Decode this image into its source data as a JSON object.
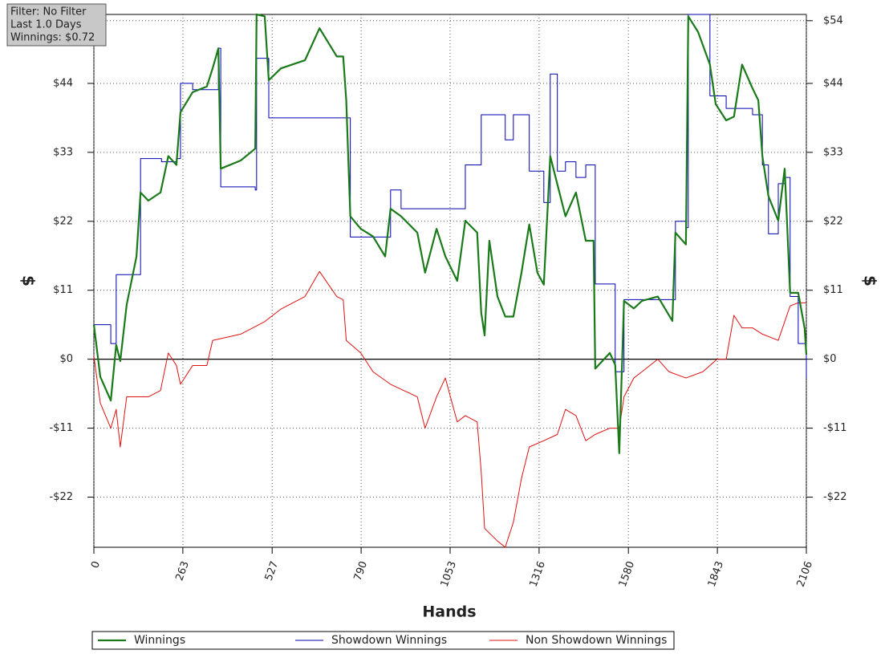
{
  "chart_data": {
    "type": "line",
    "annotations": [
      "Filter: No Filter",
      "Last 1.0 Days",
      "Winnings: $0.72"
    ],
    "x_label": "Hands",
    "y_label": "$",
    "y2_label": "$",
    "xlim": [
      0,
      2106
    ],
    "ylim": [
      -30,
      55
    ],
    "xticks": [
      0,
      263,
      527,
      790,
      1053,
      1316,
      1580,
      1843,
      2106
    ],
    "yticks": [
      {
        "value": -22,
        "label": "-$22"
      },
      {
        "value": -11,
        "label": "-$11"
      },
      {
        "value": 0,
        "label": "$0"
      },
      {
        "value": 11,
        "label": "$11"
      },
      {
        "value": 22,
        "label": "$22"
      },
      {
        "value": 33,
        "label": "$33"
      },
      {
        "value": 44,
        "label": "$44"
      },
      {
        "value": 54,
        "label": "$54"
      }
    ],
    "grid": true,
    "series": [
      {
        "name": "Winnings",
        "color": "#1a7a1a",
        "width": 2.2,
        "x": [
          0,
          19,
          50,
          66,
          78,
          97,
          126,
          138,
          161,
          197,
          220,
          244,
          256,
          292,
          334,
          351,
          368,
          375,
          434,
          477,
          481,
          505,
          517,
          553,
          624,
          667,
          718,
          737,
          746,
          758,
          789,
          825,
          861,
          877,
          908,
          956,
          979,
          1013,
          1039,
          1074,
          1098,
          1133,
          1145,
          1155,
          1169,
          1193,
          1216,
          1240,
          1264,
          1287,
          1311,
          1330,
          1349,
          1370,
          1394,
          1425,
          1454,
          1477,
          1482,
          1525,
          1541,
          1553,
          1567,
          1596,
          1620,
          1667,
          1710,
          1719,
          1750,
          1757,
          1786,
          1821,
          1838,
          1869,
          1892,
          1916,
          1947,
          1964,
          1976,
          1994,
          2023,
          2042,
          2058,
          2082,
          2101,
          2106
        ],
        "values": [
          5.5,
          -2.8,
          -6.6,
          2.3,
          -0.3,
          8.7,
          16.4,
          26.6,
          25.3,
          26.6,
          32.4,
          31,
          39.4,
          42.6,
          43.5,
          46.4,
          49.6,
          30.4,
          31.7,
          33.6,
          55,
          54.7,
          44.5,
          46.4,
          47.7,
          52.8,
          48.3,
          48.3,
          41.3,
          22.8,
          20.8,
          19.6,
          16.4,
          24,
          22.8,
          20.2,
          13.8,
          20.8,
          16.4,
          12.5,
          22.1,
          20.2,
          7.4,
          3.8,
          18.9,
          10,
          6.8,
          6.8,
          13.8,
          21.5,
          13.8,
          11.9,
          32.4,
          27.9,
          22.8,
          26.6,
          18.9,
          18.9,
          -1.5,
          1,
          -0.9,
          -15,
          9.3,
          8.1,
          9.3,
          10,
          6.1,
          20.2,
          18.3,
          54.7,
          52.2,
          47,
          40.7,
          38.1,
          38.7,
          47,
          43.2,
          41.3,
          32.4,
          26,
          22.1,
          30.4,
          10.6,
          10.6,
          4.9,
          0.72
        ]
      },
      {
        "name": "Showdown Winnings",
        "color": "#0000b0",
        "width": 1,
        "step": true,
        "x": [
          0,
          19,
          50,
          66,
          126,
          138,
          200,
          244,
          256,
          292,
          351,
          368,
          375,
          477,
          481,
          517,
          624,
          746,
          758,
          861,
          877,
          908,
          1074,
          1098,
          1133,
          1145,
          1193,
          1216,
          1240,
          1287,
          1311,
          1330,
          1349,
          1370,
          1394,
          1425,
          1454,
          1477,
          1482,
          1525,
          1541,
          1567,
          1710,
          1719,
          1750,
          1757,
          1786,
          1821,
          1869,
          1916,
          1947,
          1976,
          1994,
          2023,
          2042,
          2058,
          2082,
          2106
        ],
        "values": [
          5.5,
          5.5,
          2.5,
          13.5,
          13.5,
          32,
          31.5,
          32,
          44,
          43,
          43,
          49.6,
          27.5,
          27,
          48,
          38.5,
          38.5,
          38.5,
          19.5,
          19.5,
          27,
          24,
          24,
          31,
          31,
          39,
          39,
          35,
          39,
          30,
          30,
          25,
          45.5,
          30,
          31.5,
          29,
          31,
          31,
          12,
          12,
          -2,
          9.5,
          9.5,
          22,
          21,
          55,
          55,
          42,
          40,
          40,
          39,
          31,
          20,
          28,
          29,
          10,
          2.5,
          -3
        ]
      },
      {
        "name": "Non Showdown Winnings",
        "color": "#e01010",
        "width": 1,
        "x": [
          0,
          19,
          50,
          66,
          78,
          97,
          161,
          197,
          220,
          244,
          256,
          292,
          334,
          351,
          434,
          505,
          553,
          624,
          667,
          718,
          737,
          746,
          789,
          825,
          877,
          956,
          979,
          1013,
          1039,
          1074,
          1098,
          1133,
          1145,
          1155,
          1193,
          1216,
          1240,
          1264,
          1287,
          1330,
          1370,
          1394,
          1425,
          1454,
          1482,
          1525,
          1553,
          1567,
          1596,
          1620,
          1667,
          1700,
          1750,
          1800,
          1842,
          1869,
          1892,
          1916,
          1947,
          1976,
          2023,
          2042,
          2058,
          2082,
          2106
        ],
        "values": [
          0.5,
          -7,
          -11,
          -8,
          -14,
          -6,
          -6,
          -5,
          1,
          -1,
          -4,
          -1,
          -1,
          3,
          4,
          6,
          8,
          10,
          14,
          10,
          9.5,
          3,
          1,
          -2,
          -4,
          -6,
          -11,
          -6,
          -3,
          -10,
          -9,
          -10,
          -18,
          -27,
          -29,
          -30,
          -26,
          -19,
          -14,
          -13,
          -12,
          -8,
          -9,
          -13,
          -12,
          -11,
          -11,
          -6,
          -3,
          -2,
          0,
          -2,
          -3,
          -2,
          0,
          0,
          7,
          5,
          5,
          4,
          3,
          6,
          8.5,
          9,
          9
        ]
      }
    ]
  }
}
